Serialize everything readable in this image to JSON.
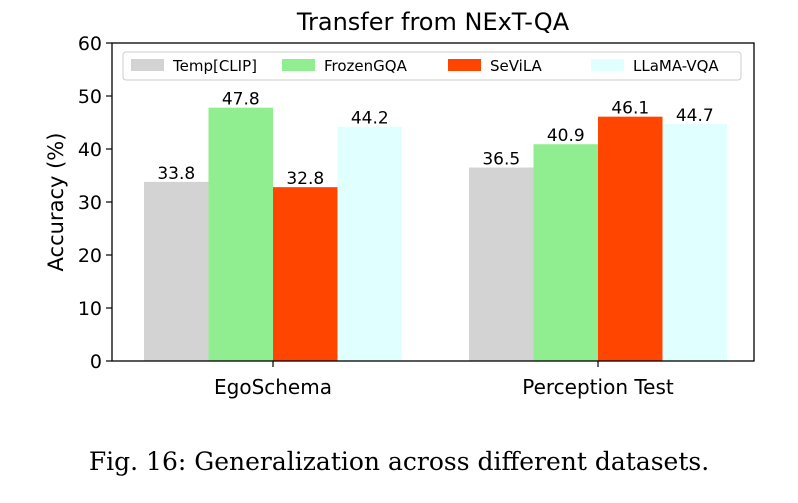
{
  "caption": "Fig. 16: Generalization across different datasets.",
  "chart_data": {
    "type": "bar",
    "title": "Transfer from NExT-QA",
    "xlabel": "",
    "ylabel": "Accuracy (%)",
    "ylim": [
      0,
      60
    ],
    "yticks": [
      0,
      10,
      20,
      30,
      40,
      50,
      60
    ],
    "categories": [
      "EgoSchema",
      "Perception Test"
    ],
    "legend_position": "top",
    "grid": false,
    "series": [
      {
        "name": "Temp[CLIP]",
        "color": "#d3d3d3",
        "values": [
          33.8,
          36.5
        ]
      },
      {
        "name": "FrozenGQA",
        "color": "#90ee90",
        "values": [
          47.8,
          40.9
        ]
      },
      {
        "name": "SeViLA",
        "color": "#ff4500",
        "values": [
          32.8,
          46.1
        ]
      },
      {
        "name": "LLaMA-VQA",
        "color": "#e0ffff",
        "values": [
          44.2,
          44.7
        ]
      }
    ]
  }
}
